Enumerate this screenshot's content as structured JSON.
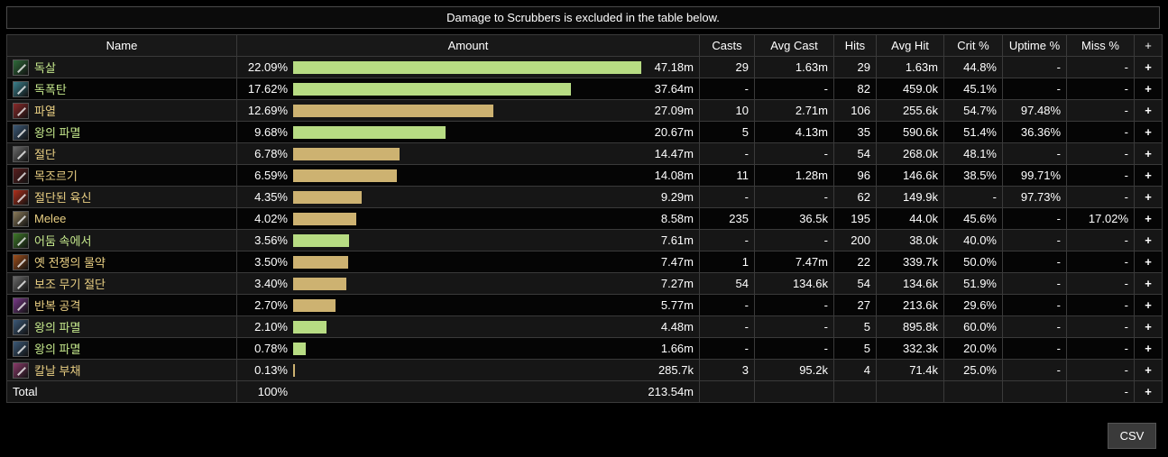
{
  "notice": "Damage to Scrubbers is excluded in the table below.",
  "colors": {
    "green_bar": "#b7dc83",
    "gold_bar": "#cdb271",
    "green_name": "#c5e88c",
    "gold_name": "#e9cf83"
  },
  "headers": {
    "name": "Name",
    "amount": "Amount",
    "casts": "Casts",
    "avg_cast": "Avg Cast",
    "hits": "Hits",
    "avg_hit": "Avg Hit",
    "crit": "Crit %",
    "uptime": "Uptime %",
    "miss": "Miss %",
    "plus": "+"
  },
  "rows": [
    {
      "name": "독살",
      "icon": "poison-skill-icon",
      "icon_color": "#2f6b3a",
      "color": "green",
      "pct": "22.09%",
      "fraction": 0.2209,
      "amount": "47.18m",
      "casts": "29",
      "avg_cast": "1.63m",
      "hits": "29",
      "avg_hit": "1.63m",
      "crit": "44.8%",
      "uptime": "-",
      "miss": "-",
      "plus": "+"
    },
    {
      "name": "독폭탄",
      "icon": "poison-bomb-skill-icon",
      "icon_color": "#3a7f8c",
      "color": "green",
      "pct": "17.62%",
      "fraction": 0.1762,
      "amount": "37.64m",
      "casts": "-",
      "avg_cast": "-",
      "hits": "82",
      "avg_hit": "459.0k",
      "crit": "45.1%",
      "uptime": "-",
      "miss": "-",
      "plus": "+"
    },
    {
      "name": "파열",
      "icon": "rupture-skill-icon",
      "icon_color": "#8a2a2a",
      "color": "gold",
      "pct": "12.69%",
      "fraction": 0.1269,
      "amount": "27.09m",
      "casts": "10",
      "avg_cast": "2.71m",
      "hits": "106",
      "avg_hit": "255.6k",
      "crit": "54.7%",
      "uptime": "97.48%",
      "miss": "-",
      "plus": "+"
    },
    {
      "name": "왕의 파멸",
      "icon": "kingsbane-skill-icon",
      "icon_color": "#3c5a78",
      "color": "green",
      "pct": "9.68%",
      "fraction": 0.0968,
      "amount": "20.67m",
      "casts": "5",
      "avg_cast": "4.13m",
      "hits": "35",
      "avg_hit": "590.6k",
      "crit": "51.4%",
      "uptime": "36.36%",
      "miss": "-",
      "plus": "+"
    },
    {
      "name": "절단",
      "icon": "crossed-blades-skill-icon",
      "icon_color": "#6a6a6a",
      "color": "gold",
      "pct": "6.78%",
      "fraction": 0.0678,
      "amount": "14.47m",
      "casts": "-",
      "avg_cast": "-",
      "hits": "54",
      "avg_hit": "268.0k",
      "crit": "48.1%",
      "uptime": "-",
      "miss": "-",
      "plus": "+"
    },
    {
      "name": "목조르기",
      "icon": "garrote-skill-icon",
      "icon_color": "#5a1f1f",
      "color": "gold",
      "pct": "6.59%",
      "fraction": 0.0659,
      "amount": "14.08m",
      "casts": "11",
      "avg_cast": "1.28m",
      "hits": "96",
      "avg_hit": "146.6k",
      "crit": "38.5%",
      "uptime": "99.71%",
      "miss": "-",
      "plus": "+"
    },
    {
      "name": "절단된 육신",
      "icon": "severed-flesh-skill-icon",
      "icon_color": "#b0301c",
      "color": "gold",
      "pct": "4.35%",
      "fraction": 0.0435,
      "amount": "9.29m",
      "casts": "-",
      "avg_cast": "-",
      "hits": "62",
      "avg_hit": "149.9k",
      "crit": "-",
      "uptime": "97.73%",
      "miss": "-",
      "plus": "+"
    },
    {
      "name": "Melee",
      "icon": "melee-skill-icon",
      "icon_color": "#8a7a5a",
      "color": "gold",
      "pct": "4.02%",
      "fraction": 0.0402,
      "amount": "8.58m",
      "casts": "235",
      "avg_cast": "36.5k",
      "hits": "195",
      "avg_hit": "44.0k",
      "crit": "45.6%",
      "uptime": "-",
      "miss": "17.02%",
      "plus": "+"
    },
    {
      "name": "어둠 속에서",
      "icon": "from-darkness-skill-icon",
      "icon_color": "#3f7a2a",
      "color": "green",
      "pct": "3.56%",
      "fraction": 0.0356,
      "amount": "7.61m",
      "casts": "-",
      "avg_cast": "-",
      "hits": "200",
      "avg_hit": "38.0k",
      "crit": "40.0%",
      "uptime": "-",
      "miss": "-",
      "plus": "+"
    },
    {
      "name": "옛 전쟁의 물약",
      "icon": "potion-skill-icon",
      "icon_color": "#a0501c",
      "color": "gold",
      "pct": "3.50%",
      "fraction": 0.035,
      "amount": "7.47m",
      "casts": "1",
      "avg_cast": "7.47m",
      "hits": "22",
      "avg_hit": "339.7k",
      "crit": "50.0%",
      "uptime": "-",
      "miss": "-",
      "plus": "+"
    },
    {
      "name": "보조 무기 절단",
      "icon": "offhand-blades-skill-icon",
      "icon_color": "#6a6a6a",
      "color": "gold",
      "pct": "3.40%",
      "fraction": 0.034,
      "amount": "7.27m",
      "casts": "54",
      "avg_cast": "134.6k",
      "hits": "54",
      "avg_hit": "134.6k",
      "crit": "51.9%",
      "uptime": "-",
      "miss": "-",
      "plus": "+"
    },
    {
      "name": "반복 공격",
      "icon": "repeat-strike-skill-icon",
      "icon_color": "#7a3a8a",
      "color": "gold",
      "pct": "2.70%",
      "fraction": 0.027,
      "amount": "5.77m",
      "casts": "-",
      "avg_cast": "-",
      "hits": "27",
      "avg_hit": "213.6k",
      "crit": "29.6%",
      "uptime": "-",
      "miss": "-",
      "plus": "+"
    },
    {
      "name": "왕의 파멸",
      "icon": "kingsbane-skill-icon",
      "icon_color": "#3c5a78",
      "color": "green",
      "pct": "2.10%",
      "fraction": 0.021,
      "amount": "4.48m",
      "casts": "-",
      "avg_cast": "-",
      "hits": "5",
      "avg_hit": "895.8k",
      "crit": "60.0%",
      "uptime": "-",
      "miss": "-",
      "plus": "+"
    },
    {
      "name": "왕의 파멸",
      "icon": "kingsbane-skill-icon",
      "icon_color": "#3c5a78",
      "color": "green",
      "pct": "0.78%",
      "fraction": 0.0078,
      "amount": "1.66m",
      "casts": "-",
      "avg_cast": "-",
      "hits": "5",
      "avg_hit": "332.3k",
      "crit": "20.0%",
      "uptime": "-",
      "miss": "-",
      "plus": "+"
    },
    {
      "name": "칼날 부채",
      "icon": "fan-of-knives-skill-icon",
      "icon_color": "#8a3a6a",
      "color": "gold",
      "pct": "0.13%",
      "fraction": 0.0013,
      "amount": "285.7k",
      "casts": "3",
      "avg_cast": "95.2k",
      "hits": "4",
      "avg_hit": "71.4k",
      "crit": "25.0%",
      "uptime": "-",
      "miss": "-",
      "plus": "+"
    }
  ],
  "total": {
    "name": "Total",
    "pct": "100%",
    "amount": "213.54m",
    "miss": "-",
    "plus": "+"
  },
  "csv_label": "CSV"
}
